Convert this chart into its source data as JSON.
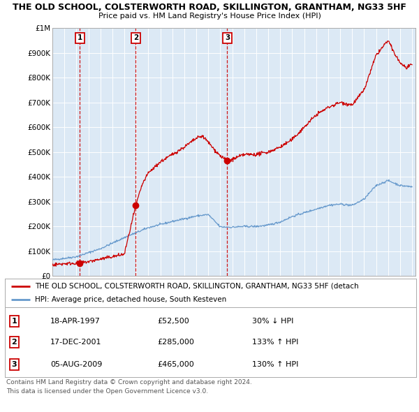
{
  "title1": "THE OLD SCHOOL, COLSTERWORTH ROAD, SKILLINGTON, GRANTHAM, NG33 5HF",
  "title2": "Price paid vs. HM Land Registry's House Price Index (HPI)",
  "xlim": [
    1995,
    2025
  ],
  "ylim": [
    0,
    1000000
  ],
  "yticks": [
    0,
    100000,
    200000,
    300000,
    400000,
    500000,
    600000,
    700000,
    800000,
    900000,
    1000000
  ],
  "ytick_labels": [
    "£0",
    "£100K",
    "£200K",
    "£300K",
    "£400K",
    "£500K",
    "£600K",
    "£700K",
    "£800K",
    "£900K",
    "£1M"
  ],
  "xticks": [
    1995,
    1996,
    1997,
    1998,
    1999,
    2000,
    2001,
    2002,
    2003,
    2004,
    2005,
    2006,
    2007,
    2008,
    2009,
    2010,
    2011,
    2012,
    2013,
    2014,
    2015,
    2016,
    2017,
    2018,
    2019,
    2020,
    2021,
    2022,
    2023,
    2024,
    2025
  ],
  "sales": [
    {
      "date": 1997.29,
      "price": 52500,
      "label": "1"
    },
    {
      "date": 2001.96,
      "price": 285000,
      "label": "2"
    },
    {
      "date": 2009.59,
      "price": 465000,
      "label": "3"
    }
  ],
  "legend_line1": "THE OLD SCHOOL, COLSTERWORTH ROAD, SKILLINGTON, GRANTHAM, NG33 5HF (detach",
  "legend_line2": "HPI: Average price, detached house, South Kesteven",
  "table_entries": [
    {
      "num": "1",
      "date": "18-APR-1997",
      "price": "£52,500",
      "hpi": "30% ↓ HPI"
    },
    {
      "num": "2",
      "date": "17-DEC-2001",
      "price": "£285,000",
      "hpi": "133% ↑ HPI"
    },
    {
      "num": "3",
      "date": "05-AUG-2009",
      "price": "£465,000",
      "hpi": "130% ↑ HPI"
    }
  ],
  "footnote1": "Contains HM Land Registry data © Crown copyright and database right 2024.",
  "footnote2": "This data is licensed under the Open Government Licence v3.0.",
  "plot_bg": "#dce9f5",
  "red_line_color": "#cc0000",
  "blue_line_color": "#6699cc",
  "vline_color": "#cc0000",
  "label_box_color": "#cc0000"
}
